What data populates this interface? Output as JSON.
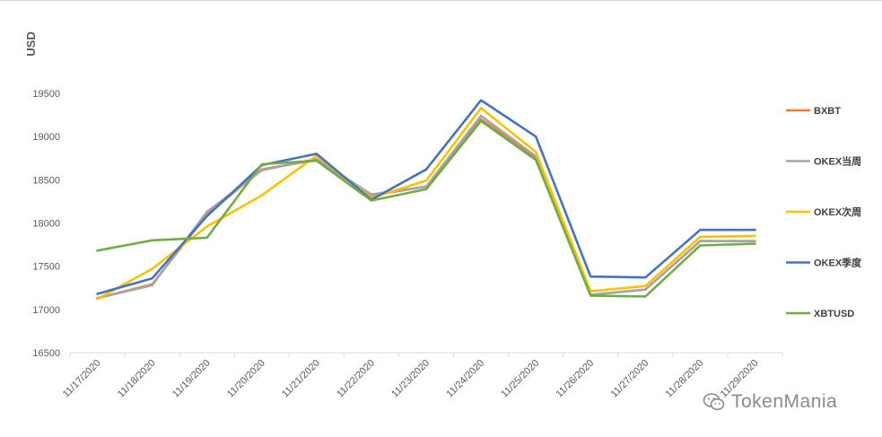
{
  "chart_data": {
    "type": "line",
    "title": "",
    "xlabel": "",
    "ylabel": "USD",
    "ylim": [
      16500,
      19500
    ],
    "yticks": [
      16500,
      17000,
      17500,
      18000,
      18500,
      19000,
      19500
    ],
    "categories": [
      "11/17/2020",
      "11/18/2020",
      "11/19/2020",
      "11/20/2020",
      "11/21/2020",
      "11/22/2020",
      "11/23/2020",
      "11/24/2020",
      "11/25/2020",
      "11/26/2020",
      "11/27/2020",
      "11/28/2020",
      "11/29/2020"
    ],
    "grid": false,
    "legend": "right",
    "series": [
      {
        "name": "BXBT",
        "color": "#ed7d31",
        "values": [
          17130,
          17290,
          18100,
          18620,
          18730,
          18320,
          18420,
          19200,
          18760,
          17170,
          17230,
          17790,
          17790
        ]
      },
      {
        "name": "OKEX当周",
        "color": "#a5a5a5",
        "values": [
          17130,
          17280,
          18130,
          18610,
          18740,
          18330,
          18420,
          19240,
          18770,
          17170,
          17230,
          17790,
          17790
        ]
      },
      {
        "name": "OKEX次周",
        "color": "#ffc000",
        "values": [
          17120,
          17470,
          17960,
          18320,
          18780,
          18290,
          18490,
          19330,
          18820,
          17210,
          17270,
          17840,
          17850
        ]
      },
      {
        "name": "OKEX季度",
        "color": "#4472c4",
        "values": [
          17180,
          17360,
          18080,
          18670,
          18800,
          18270,
          18620,
          19420,
          19000,
          17380,
          17370,
          17920,
          17920
        ]
      },
      {
        "name": "XBTUSD",
        "color": "#70ad47",
        "values": [
          17680,
          17800,
          17830,
          18680,
          18720,
          18260,
          18390,
          19180,
          18730,
          17160,
          17150,
          17740,
          17760
        ]
      }
    ]
  },
  "watermark": {
    "text": "TokenMania",
    "icon": "wechat-icon"
  }
}
